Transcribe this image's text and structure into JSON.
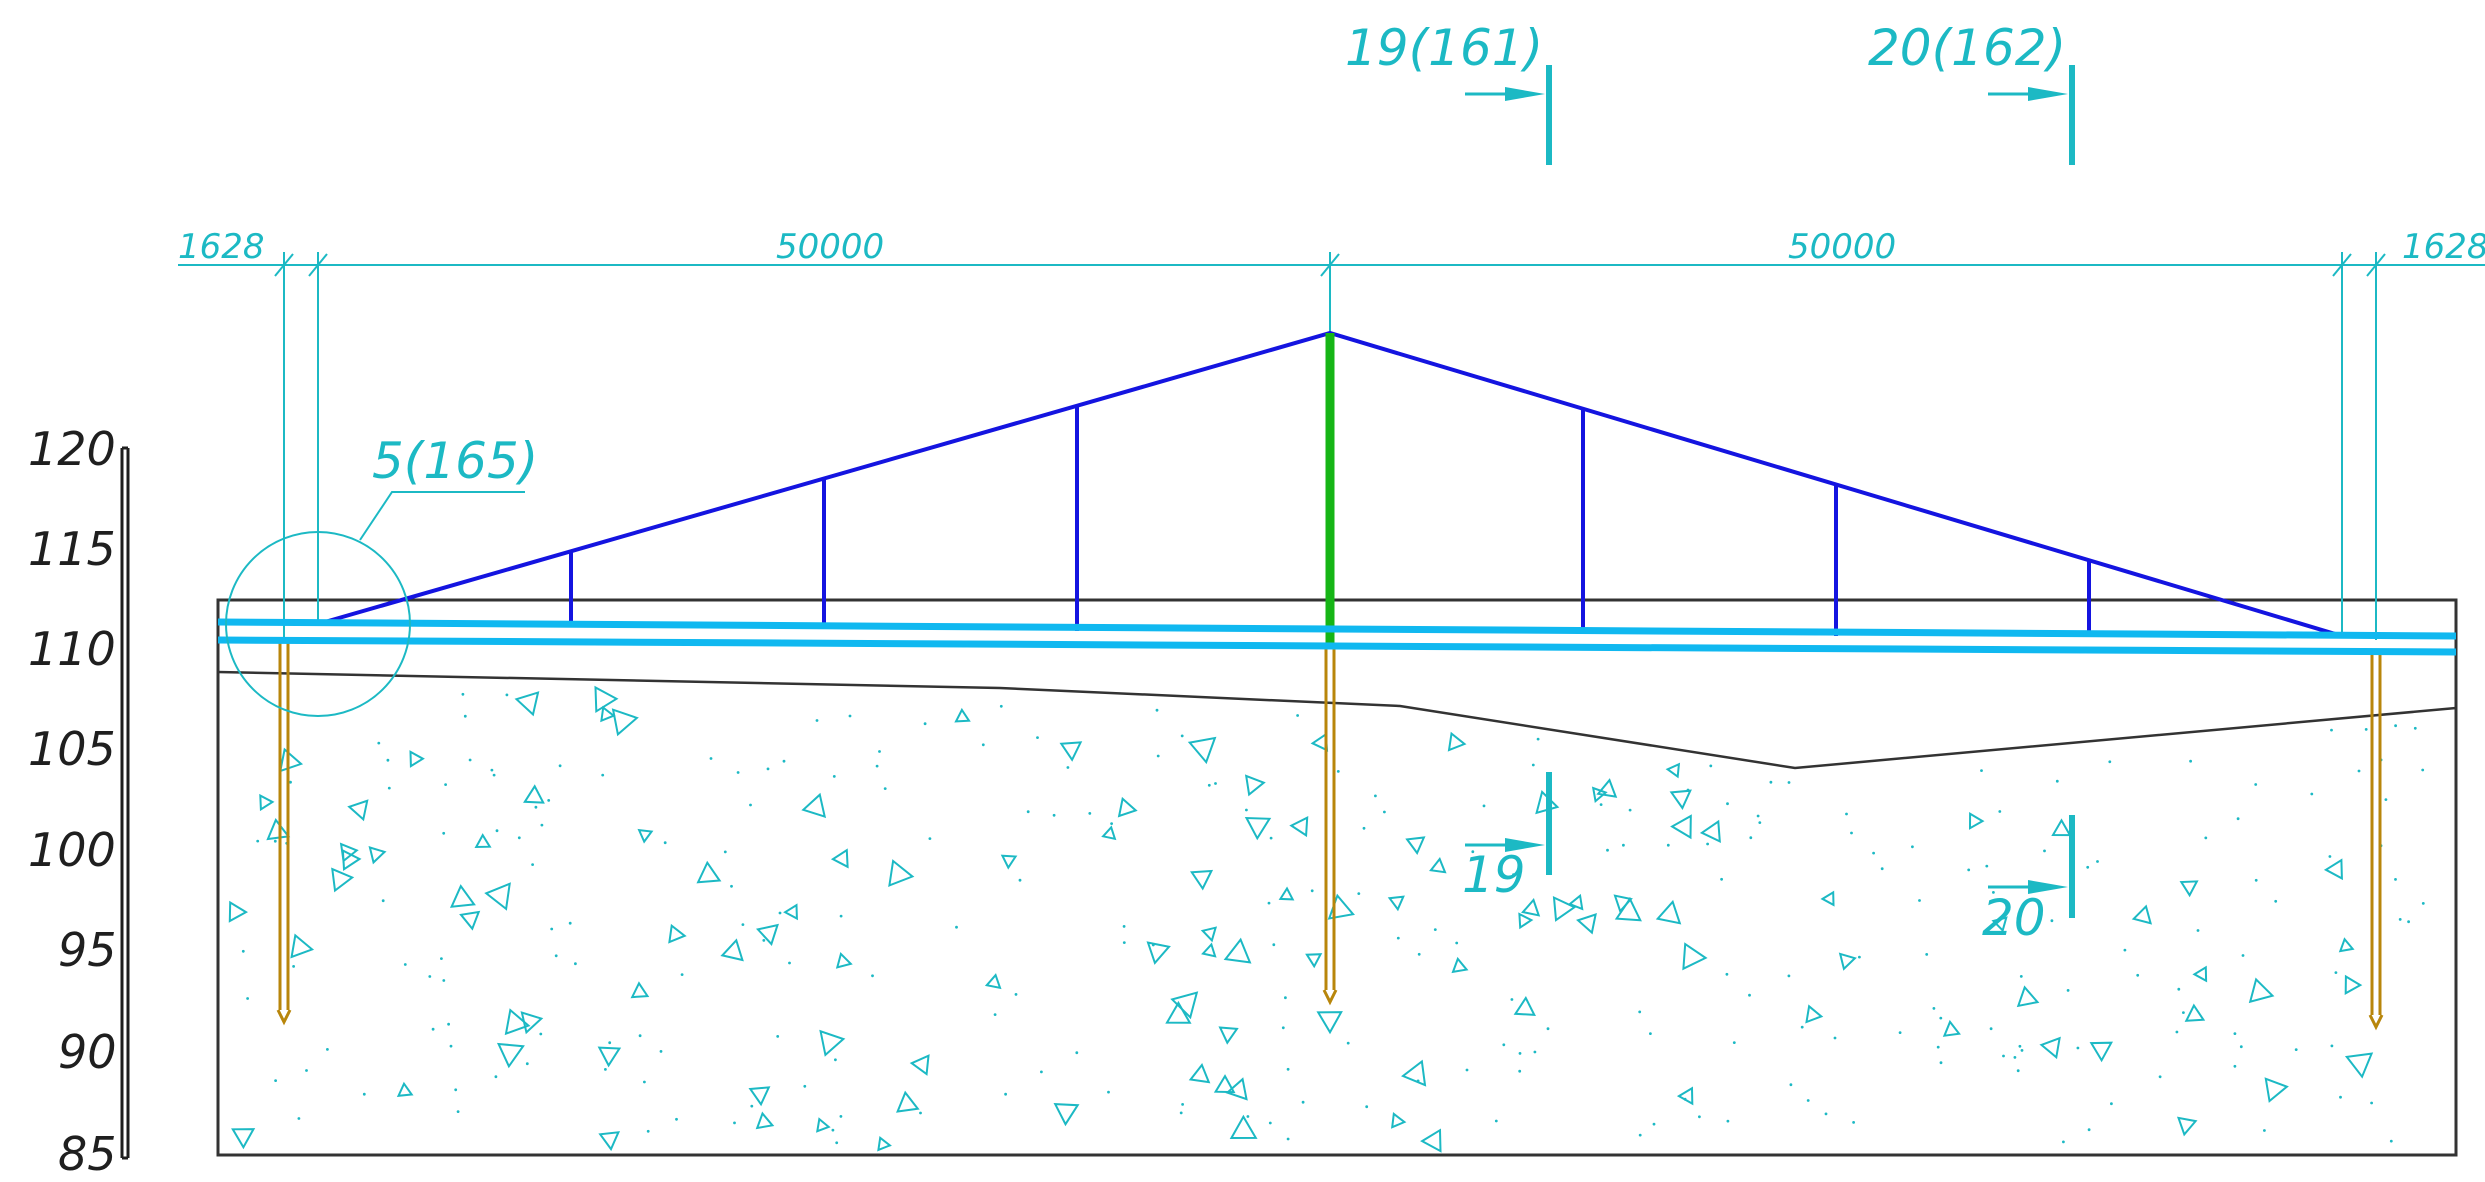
{
  "section_markers": [
    {
      "label": "19(161)"
    },
    {
      "label": "20(162)"
    }
  ],
  "dimensions": {
    "left_overhang": "1628",
    "span_left": "50000",
    "span_right": "50000",
    "right_overhang": "1628"
  },
  "detail_callout": {
    "label": "5(165)"
  },
  "elevation_scale": {
    "ticks": [
      "120",
      "115",
      "110",
      "105",
      "100",
      "95",
      "90",
      "85"
    ]
  },
  "ground_section_markers": [
    {
      "label": "19"
    },
    {
      "label": "20"
    }
  ],
  "colors": {
    "dimension_cyan": "#1cb9c4",
    "truss_blue": "#1414e0",
    "deck_cyan": "#10b8f0",
    "center_post_green": "#16b516",
    "pile_gold": "#b8860b",
    "ground_line": "#333333",
    "soil_hatch": "#1cb9c4"
  },
  "icons": {
    "section_arrow": "arrow-right-icon",
    "soil_symbol": "triangle-icon"
  }
}
